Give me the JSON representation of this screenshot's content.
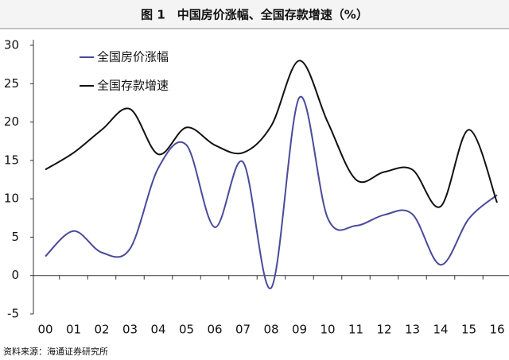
{
  "chart_data": {
    "type": "line",
    "title": "图 1　中国房价涨幅、全国存款增速（%）",
    "source": "资料来源：海通证券研究所",
    "categories": [
      "00",
      "01",
      "02",
      "03",
      "04",
      "05",
      "06",
      "07",
      "08",
      "09",
      "10",
      "11",
      "12",
      "13",
      "14",
      "15",
      "16"
    ],
    "series": [
      {
        "name": "全国房价涨幅",
        "color": "#4a4a9c",
        "values": [
          2.5,
          5.8,
          3,
          3.5,
          14,
          17,
          6.3,
          14.8,
          -1.6,
          23.2,
          7.5,
          6.5,
          7.9,
          8,
          1.4,
          7.4,
          10.5
        ]
      },
      {
        "name": "全国存款增速",
        "color": "#111111",
        "values": [
          13.8,
          16,
          19,
          21.7,
          15.8,
          19.3,
          17,
          16,
          19.5,
          28,
          20,
          12.5,
          13.5,
          13.8,
          9,
          19,
          9.5
        ]
      }
    ],
    "ylim": [
      -5,
      30
    ],
    "yticks": [
      -5,
      0,
      5,
      10,
      15,
      20,
      25,
      30
    ],
    "legend": "upper left"
  }
}
